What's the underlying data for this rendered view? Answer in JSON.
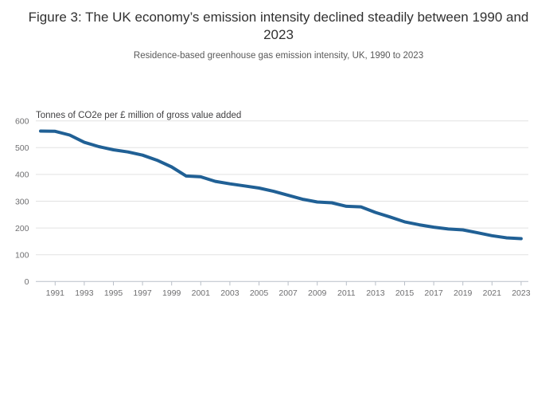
{
  "colors": {
    "line": "#206095",
    "grid": "#e2e2e2",
    "axis": "#b9bfc8",
    "tick_label": "#6f6f71",
    "unit_label": "#414042",
    "title": "#303030",
    "subtitle": "#595959",
    "background": "#ffffff"
  },
  "chart_data": {
    "type": "line",
    "title": "Figure 3: The UK economy’s emission intensity declined steadily between 1990 and 2023",
    "subtitle": "Residence-based greenhouse gas emission intensity, UK, 1990 to 2023",
    "unit_label": "Tonnes of CO2e per £ million of gross value added",
    "xlabel": "",
    "ylabel": "Tonnes of CO2e per £ million of gross value added",
    "xlim": [
      1990,
      2023
    ],
    "ylim": [
      0,
      600
    ],
    "grid": "horizontal",
    "legend": "none",
    "line_color": "#206095",
    "xticks": [
      1991,
      1993,
      1995,
      1997,
      1999,
      2001,
      2003,
      2005,
      2007,
      2009,
      2011,
      2013,
      2015,
      2017,
      2019,
      2021,
      2023
    ],
    "yticks": [
      0,
      100,
      200,
      300,
      400,
      500,
      600
    ],
    "series": [
      {
        "name": "Residence-based greenhouse gas emission intensity",
        "x": [
          1990,
          1991,
          1992,
          1993,
          1994,
          1995,
          1996,
          1997,
          1998,
          1999,
          2000,
          2001,
          2002,
          2003,
          2004,
          2005,
          2006,
          2007,
          2008,
          2009,
          2010,
          2011,
          2012,
          2013,
          2014,
          2015,
          2016,
          2017,
          2018,
          2019,
          2020,
          2021,
          2022,
          2023
        ],
        "values": [
          562,
          561,
          547,
          520,
          504,
          492,
          484,
          472,
          453,
          428,
          394,
          391,
          374,
          365,
          357,
          349,
          337,
          322,
          307,
          297,
          294,
          281,
          279,
          258,
          241,
          223,
          212,
          203,
          196,
          193,
          182,
          171,
          163,
          160
        ]
      }
    ]
  }
}
